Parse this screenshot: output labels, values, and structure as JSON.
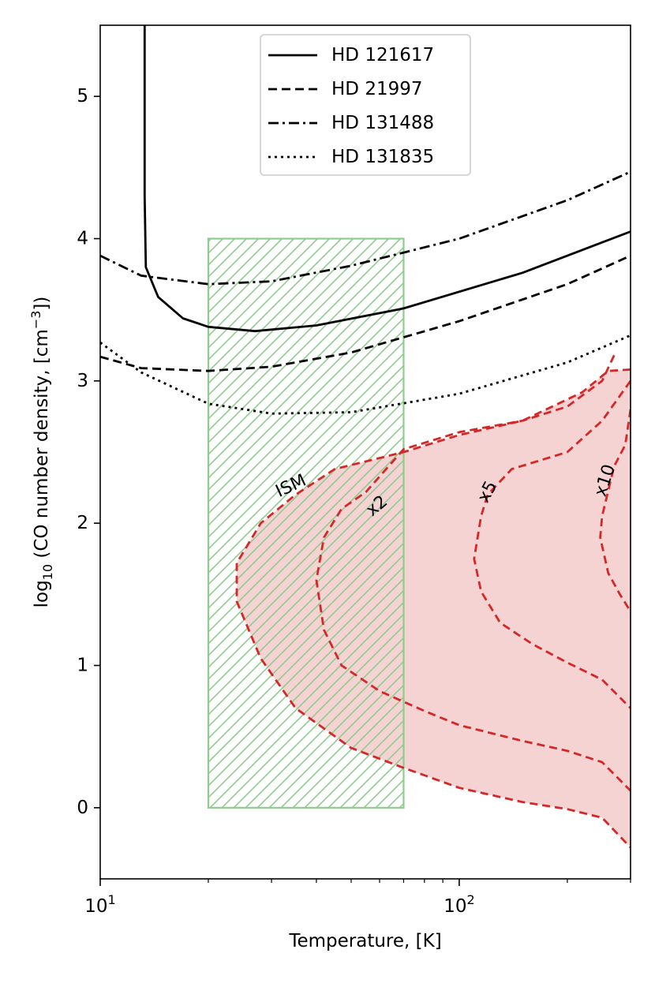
{
  "chart_data": {
    "type": "line",
    "xscale": "log",
    "xlim": [
      10,
      300
    ],
    "ylim": [
      -0.5,
      5.5
    ],
    "xlabel": "Temperature, [K]",
    "ylabel_prefix": "log",
    "ylabel_sub": "10",
    "ylabel_mid": " (CO number density, [cm",
    "ylabel_sup": "−3",
    "ylabel_suffix": "])",
    "x_ticks": [
      {
        "value": 10,
        "base": "10",
        "exp": "1"
      },
      {
        "value": 100,
        "base": "10",
        "exp": "2"
      }
    ],
    "y_ticks": [
      {
        "value": 0,
        "label": "0"
      },
      {
        "value": 1,
        "label": "1"
      },
      {
        "value": 2,
        "label": "2"
      },
      {
        "value": 3,
        "label": "3"
      },
      {
        "value": 4,
        "label": "4"
      },
      {
        "value": 5,
        "label": "5"
      }
    ],
    "legend_position": "top-center",
    "series": [
      {
        "name": "HD 121617",
        "style": "solid",
        "color": "#000000",
        "points": [
          [
            13.3,
            5.5
          ],
          [
            13.3,
            4.3
          ],
          [
            13.4,
            3.8
          ],
          [
            14.5,
            3.59
          ],
          [
            17,
            3.44
          ],
          [
            20,
            3.38
          ],
          [
            27,
            3.35
          ],
          [
            40,
            3.39
          ],
          [
            70,
            3.51
          ],
          [
            150,
            3.76
          ],
          [
            300,
            4.05
          ]
        ]
      },
      {
        "name": "HD 21997",
        "style": "dashed",
        "color": "#000000",
        "points": [
          [
            10,
            3.17
          ],
          [
            13,
            3.09
          ],
          [
            20,
            3.07
          ],
          [
            30,
            3.1
          ],
          [
            50,
            3.2
          ],
          [
            100,
            3.42
          ],
          [
            200,
            3.68
          ],
          [
            300,
            3.88
          ]
        ]
      },
      {
        "name": "HD 131488",
        "style": "dashdot",
        "color": "#000000",
        "points": [
          [
            10,
            3.88
          ],
          [
            13,
            3.74
          ],
          [
            20,
            3.68
          ],
          [
            30,
            3.7
          ],
          [
            50,
            3.81
          ],
          [
            100,
            4.0
          ],
          [
            200,
            4.27
          ],
          [
            300,
            4.47
          ]
        ]
      },
      {
        "name": "HD 131835",
        "style": "dotted",
        "color": "#000000",
        "points": [
          [
            10,
            3.27
          ],
          [
            13,
            3.06
          ],
          [
            20,
            2.84
          ],
          [
            30,
            2.77
          ],
          [
            50,
            2.78
          ],
          [
            100,
            2.91
          ],
          [
            200,
            3.13
          ],
          [
            300,
            3.32
          ]
        ]
      }
    ],
    "hatched_region": {
      "x": [
        20,
        70
      ],
      "y": [
        0,
        4
      ],
      "color": "#8fcc8f"
    },
    "shaded_region_color": "#f5d3d3",
    "contour_color": "#d62728",
    "contours": [
      {
        "label": "ISM",
        "points": [
          [
            300,
            3.08
          ],
          [
            260,
            3.07
          ],
          [
            220,
            2.92
          ],
          [
            150,
            2.72
          ],
          [
            100,
            2.62
          ],
          [
            70,
            2.5
          ],
          [
            45,
            2.38
          ],
          [
            35,
            2.2
          ],
          [
            28,
            2.0
          ],
          [
            24,
            1.72
          ],
          [
            24,
            1.45
          ],
          [
            28,
            1.05
          ],
          [
            35,
            0.7
          ],
          [
            50,
            0.42
          ],
          [
            70,
            0.28
          ],
          [
            100,
            0.14
          ],
          [
            150,
            0.04
          ],
          [
            200,
            -0.01
          ],
          [
            250,
            -0.07
          ],
          [
            300,
            -0.28
          ]
        ]
      },
      {
        "label": "x2",
        "points": [
          [
            270,
            3.18
          ],
          [
            250,
            3.0
          ],
          [
            200,
            2.82
          ],
          [
            150,
            2.72
          ],
          [
            100,
            2.64
          ],
          [
            70,
            2.52
          ],
          [
            55,
            2.22
          ],
          [
            47,
            2.1
          ],
          [
            42,
            1.9
          ],
          [
            40,
            1.6
          ],
          [
            42,
            1.25
          ],
          [
            47,
            1.0
          ],
          [
            60,
            0.82
          ],
          [
            80,
            0.68
          ],
          [
            100,
            0.58
          ],
          [
            150,
            0.47
          ],
          [
            200,
            0.4
          ],
          [
            250,
            0.32
          ],
          [
            300,
            0.12
          ]
        ]
      },
      {
        "label": "x5",
        "points": [
          [
            300,
            3.0
          ],
          [
            250,
            2.72
          ],
          [
            200,
            2.5
          ],
          [
            140,
            2.38
          ],
          [
            120,
            2.2
          ],
          [
            115,
            2.05
          ],
          [
            110,
            1.75
          ],
          [
            115,
            1.52
          ],
          [
            130,
            1.3
          ],
          [
            160,
            1.15
          ],
          [
            200,
            1.02
          ],
          [
            250,
            0.9
          ],
          [
            300,
            0.7
          ]
        ]
      },
      {
        "label": "x10",
        "points": [
          [
            300,
            2.8
          ],
          [
            290,
            2.55
          ],
          [
            270,
            2.4
          ],
          [
            250,
            2.05
          ],
          [
            247,
            1.9
          ],
          [
            260,
            1.65
          ],
          [
            280,
            1.5
          ],
          [
            300,
            1.38
          ]
        ]
      }
    ],
    "contour_labels": [
      {
        "text": "ISM",
        "x": 34,
        "y": 2.26,
        "angle": -25
      },
      {
        "text": "x2",
        "x": 59,
        "y": 2.12,
        "angle": -40
      },
      {
        "text": "x5",
        "x": 120,
        "y": 2.22,
        "angle": -62
      },
      {
        "text": "x10",
        "x": 255,
        "y": 2.3,
        "angle": -72
      }
    ]
  }
}
